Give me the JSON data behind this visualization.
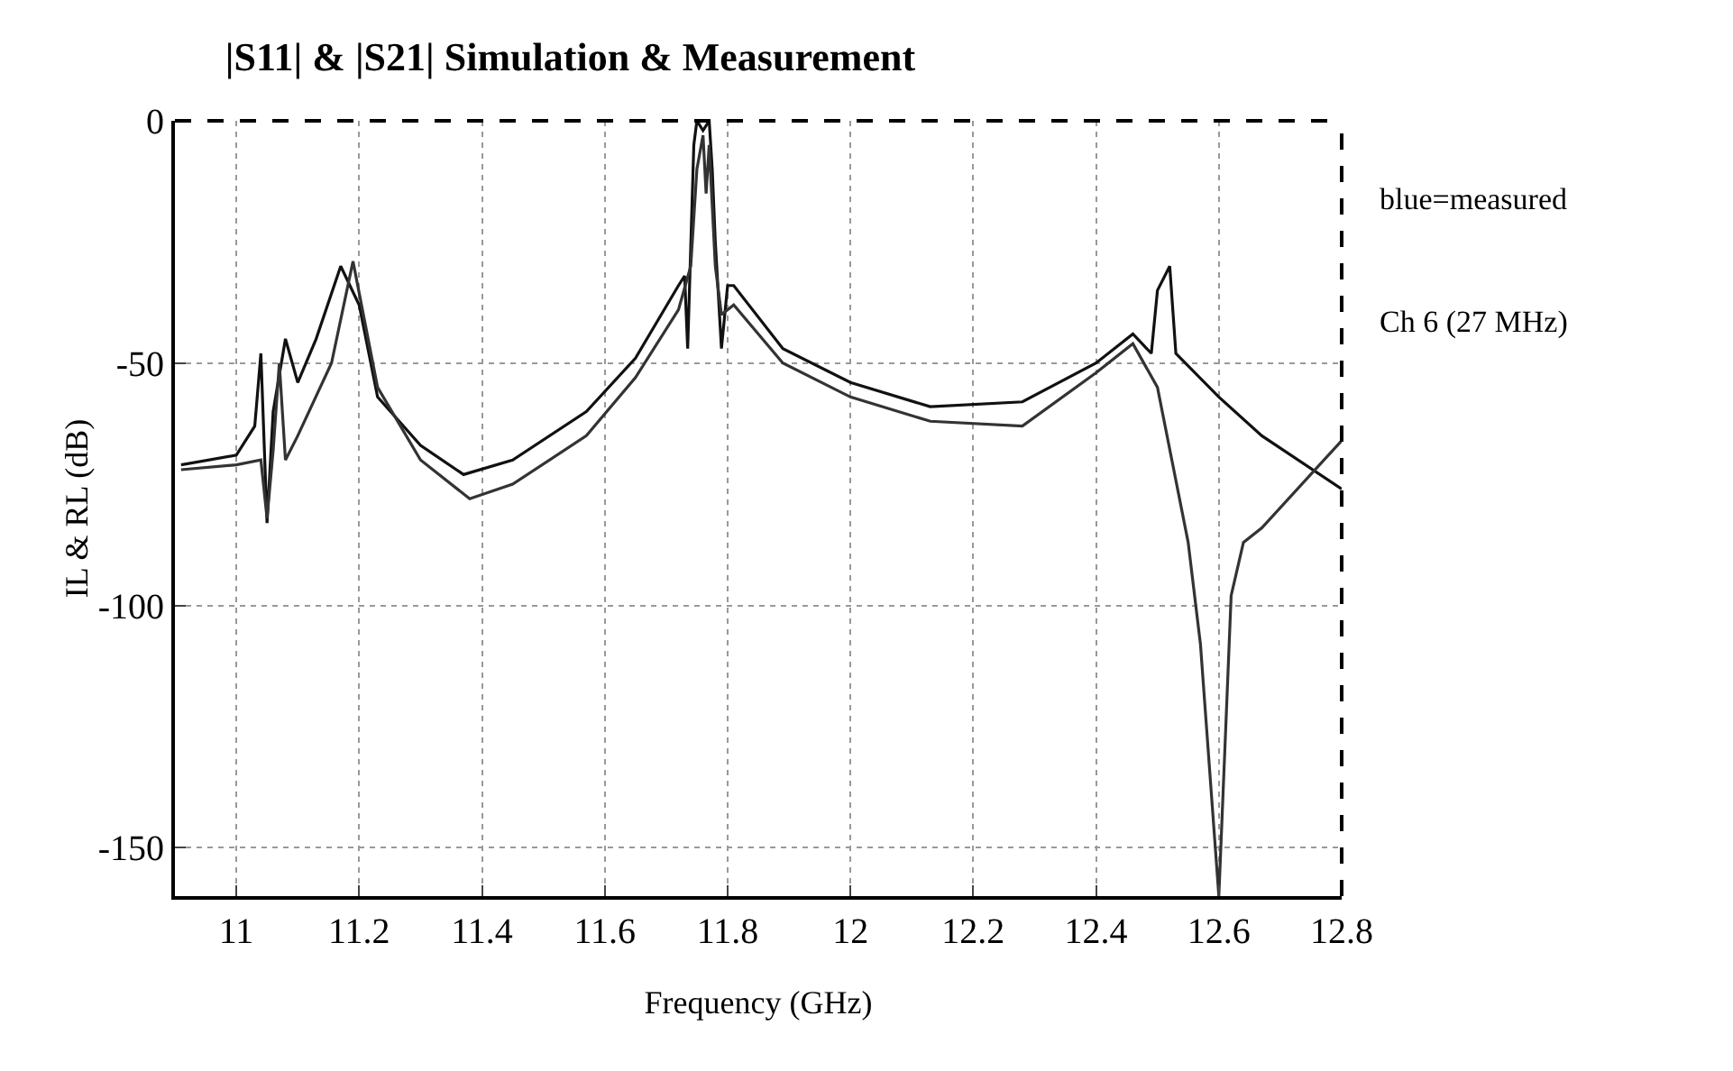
{
  "chart_data": {
    "type": "line",
    "title": "|S11| & |S21| Simulation & Measurement",
    "xlabel": "Frequency (GHz)",
    "ylabel": "IL & RL (dB)",
    "annotations": [
      "blue=measured",
      "Ch 6 (27 MHz)"
    ],
    "xlim": [
      10.9,
      12.8
    ],
    "xticks": [
      11,
      11.2,
      11.4,
      11.6,
      11.8,
      12,
      12.2,
      12.4,
      12.6,
      12.8
    ],
    "ylim": [
      -160,
      0
    ],
    "yticks": [
      0,
      -50,
      -100,
      -150
    ],
    "grid": true,
    "line_style": "solid",
    "series": [
      {
        "color": "#111111",
        "x": [
          10.91,
          11.0,
          11.03,
          11.04,
          11.05,
          11.06,
          11.08,
          11.1,
          11.13,
          11.17,
          11.2,
          11.23,
          11.3,
          11.37,
          11.45,
          11.57,
          11.65,
          11.72,
          11.73,
          11.735,
          11.745,
          11.75,
          11.76,
          11.77,
          11.775,
          11.78,
          11.79,
          11.8,
          11.81,
          11.89,
          12.0,
          12.13,
          12.28,
          12.4,
          12.46,
          12.49,
          12.5,
          12.52,
          12.53,
          12.6,
          12.67,
          12.8
        ],
        "values": [
          -71,
          -69,
          -63,
          -48,
          -83,
          -60,
          -45,
          -54,
          -45,
          -30,
          -38,
          -57,
          -67,
          -73,
          -70,
          -60,
          -49,
          -34,
          -32,
          -47,
          -5,
          0,
          -2,
          0,
          -10,
          -25,
          -47,
          -34,
          -34,
          -47,
          -54,
          -59,
          -58,
          -50,
          -44,
          -48,
          -35,
          -30,
          -48,
          -57,
          -65,
          -76
        ]
      },
      {
        "color": "#333333",
        "x": [
          10.91,
          11.0,
          11.04,
          11.05,
          11.06,
          11.07,
          11.08,
          11.1,
          11.155,
          11.19,
          11.23,
          11.3,
          11.38,
          11.45,
          11.57,
          11.65,
          11.72,
          11.74,
          11.75,
          11.76,
          11.765,
          11.77,
          11.78,
          11.79,
          11.81,
          11.89,
          12.0,
          12.13,
          12.28,
          12.4,
          12.46,
          12.5,
          12.55,
          12.57,
          12.6,
          12.62,
          12.64,
          12.67,
          12.8
        ],
        "values": [
          -72,
          -71,
          -70,
          -82,
          -68,
          -50,
          -70,
          -65,
          -50,
          -29,
          -55,
          -70,
          -78,
          -75,
          -65,
          -53,
          -39,
          -30,
          -10,
          -3,
          -15,
          -5,
          -30,
          -40,
          -38,
          -50,
          -57,
          -62,
          -63,
          -52,
          -46,
          -55,
          -87,
          -108,
          -160,
          -98,
          -87,
          -84,
          -66
        ]
      }
    ]
  }
}
